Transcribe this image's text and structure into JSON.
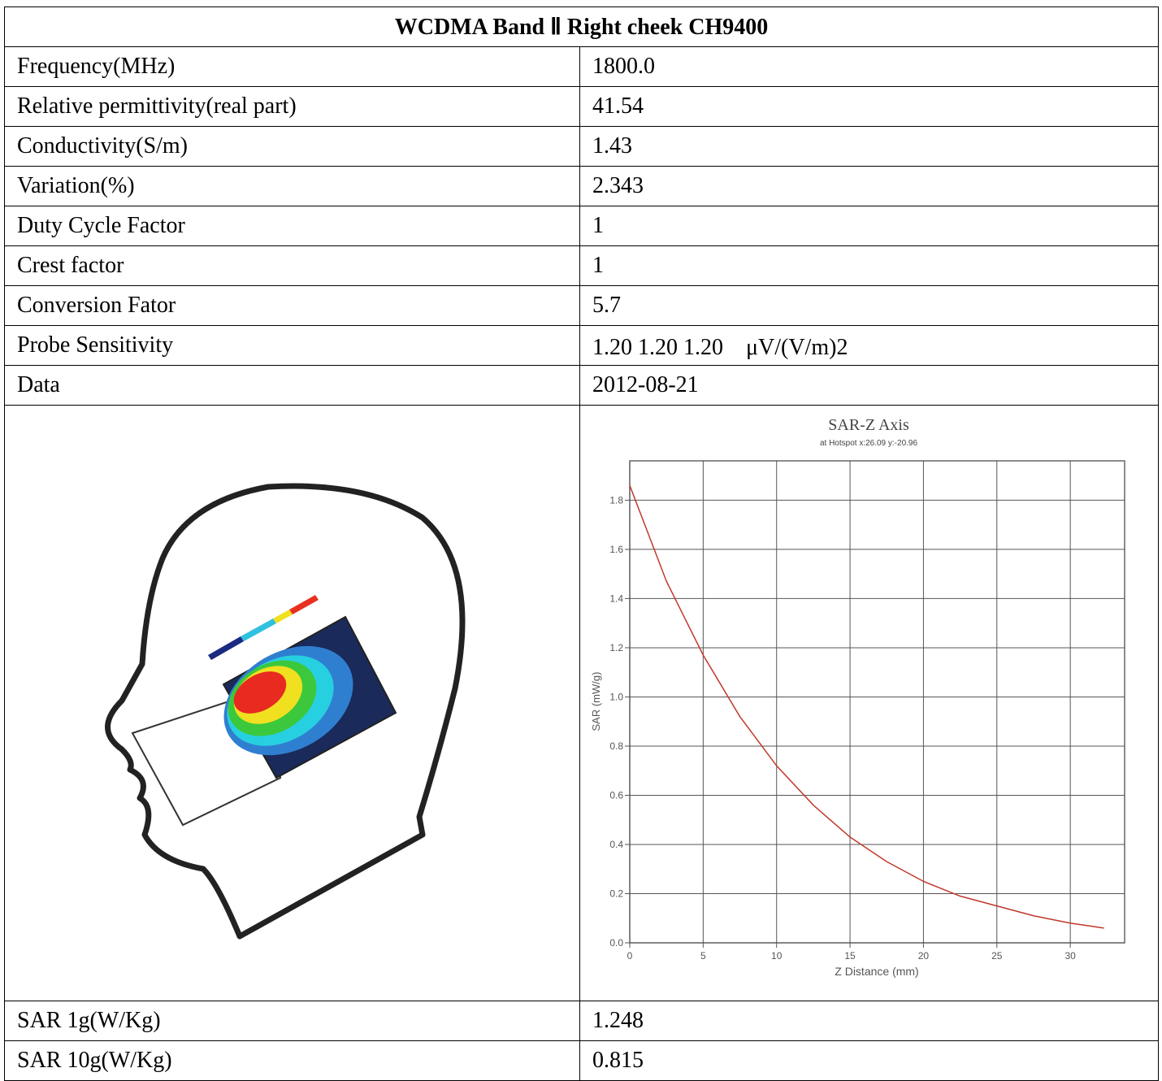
{
  "table": {
    "title": "WCDMA Band Ⅱ Right cheek CH9400",
    "rows": [
      [
        "Frequency(MHz)",
        "1800.0"
      ],
      [
        "Relative permittivity(real part)",
        "41.54"
      ],
      [
        "Conductivity(S/m)",
        "1.43"
      ],
      [
        "Variation(%)",
        "2.343"
      ],
      [
        "Duty Cycle Factor",
        "1"
      ],
      [
        "Crest factor",
        "1"
      ],
      [
        "Conversion Fator",
        "5.7"
      ],
      [
        "Probe Sensitivity",
        "1.20 1.20 1.20　μV/(V/m)2"
      ],
      [
        "Data",
        "2012-08-21"
      ]
    ],
    "result_rows": [
      [
        "SAR 1g(W/Kg)",
        "1.248"
      ],
      [
        "SAR 10g(W/Kg)",
        "0.815"
      ]
    ]
  },
  "chart_data": {
    "type": "line",
    "title": "SAR-Z Axis",
    "subtitle": "at Hotspot x:26.09 y:-20.96",
    "x_label": "Z Distance (mm)",
    "y_label": "SAR (mW/g)",
    "x": [
      0,
      2.5,
      5,
      7.5,
      10,
      12.5,
      15,
      17.5,
      20,
      22.5,
      25,
      27.5,
      30,
      32.3
    ],
    "values": [
      1.86,
      1.47,
      1.17,
      0.92,
      0.72,
      0.56,
      0.43,
      0.33,
      0.25,
      0.19,
      0.15,
      0.11,
      0.08,
      0.06
    ],
    "color": "#c0392b",
    "xlim": [
      0,
      33.7
    ],
    "ylim": [
      0,
      1.96
    ],
    "xticks": [
      0,
      5,
      10,
      15,
      20,
      25,
      30
    ],
    "yticks": [
      {
        "value": 0,
        "label": "0.0"
      },
      0.2,
      0.4,
      0.6,
      0.8,
      {
        "value": 1,
        "label": "1.0"
      },
      1.2,
      1.4,
      1.6,
      1.8
    ],
    "grid": true
  }
}
